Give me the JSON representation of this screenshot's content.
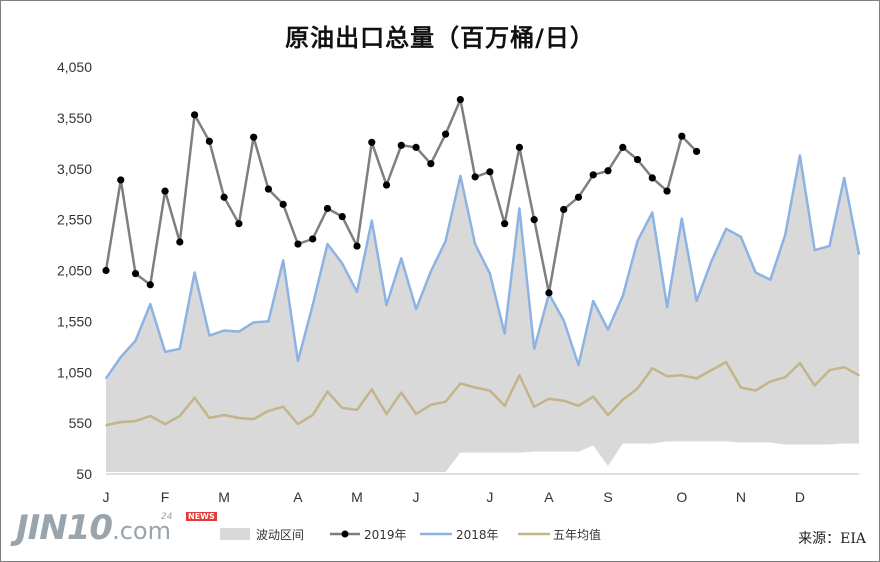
{
  "title": "原油出口总量（百万桶/日）",
  "source": "来源：EIA",
  "logo": {
    "main": "JIN10",
    "dot": ".com",
    "sub_num": "24",
    "sub_text": "NEWS"
  },
  "colors": {
    "band": "#d9d9d9",
    "y2019": "#7f7f7f",
    "y2019_marker": "#000000",
    "y2018": "#8db3e2",
    "avg5": "#c4b48a"
  },
  "chart_data": {
    "type": "line",
    "title": "原油出口总量（百万桶/日）",
    "y_ticks": [
      "50",
      "550",
      "1,050",
      "1,550",
      "2,050",
      "2,550",
      "3,050",
      "3,550",
      "4,050"
    ],
    "ylim": [
      50,
      4050
    ],
    "x_month_labels": [
      "J",
      "F",
      "M",
      "A",
      "M",
      "J",
      "J",
      "A",
      "S",
      "O",
      "N",
      "D"
    ],
    "x_label_weeks": [
      1,
      5,
      9,
      14,
      18,
      22,
      27,
      31,
      35,
      40,
      44,
      48
    ],
    "weeks": 52,
    "grid": false,
    "legend_position": "bottom",
    "legend": [
      "波动区间",
      "2019年",
      "2018年",
      "五年均值"
    ],
    "series": [
      {
        "name": "2019年",
        "values": [
          2050,
          2940,
          2020,
          1910,
          2830,
          2330,
          3580,
          3320,
          2770,
          2510,
          3360,
          2850,
          2700,
          2310,
          2360,
          2660,
          2580,
          2290,
          3310,
          2890,
          3280,
          3260,
          3100,
          3390,
          3730,
          2970,
          3020,
          2510,
          3260,
          2550,
          1830,
          2650,
          2770,
          2990,
          3030,
          3260,
          3140,
          2960,
          2830,
          3370,
          3220
        ]
      },
      {
        "name": "2018年",
        "values": [
          990,
          1200,
          1360,
          1720,
          1250,
          1280,
          2030,
          1410,
          1460,
          1450,
          1540,
          1550,
          2150,
          1160,
          1710,
          2310,
          2120,
          1840,
          2540,
          1710,
          2170,
          1670,
          2040,
          2340,
          2980,
          2310,
          2020,
          1430,
          2660,
          1280,
          1820,
          1560,
          1120,
          1750,
          1470,
          1800,
          2340,
          2620,
          1690,
          2560,
          1750,
          2140,
          2460,
          2380,
          2030,
          1960,
          2400,
          3180,
          2250,
          2290,
          2960,
          2210
        ]
      },
      {
        "name": "五年均值",
        "values": [
          530,
          560,
          570,
          620,
          540,
          620,
          800,
          600,
          630,
          600,
          590,
          670,
          710,
          540,
          630,
          860,
          700,
          680,
          880,
          640,
          850,
          640,
          730,
          760,
          940,
          900,
          870,
          720,
          1020,
          710,
          790,
          770,
          720,
          810,
          630,
          780,
          890,
          1090,
          1010,
          1020,
          990,
          1070,
          1150,
          900,
          870,
          960,
          1000,
          1140,
          920,
          1070,
          1100,
          1020
        ]
      },
      {
        "name": "波动区间",
        "upper": [
          990,
          1200,
          1360,
          1720,
          1250,
          1280,
          2030,
          1410,
          1460,
          1450,
          1540,
          1550,
          2150,
          1160,
          1710,
          2310,
          2120,
          1840,
          2540,
          1710,
          2170,
          1670,
          2040,
          2340,
          2980,
          2310,
          2020,
          1430,
          2660,
          1280,
          1820,
          1560,
          1120,
          1750,
          1470,
          1800,
          2340,
          2620,
          1690,
          2560,
          1750,
          2140,
          2460,
          2380,
          2030,
          1960,
          2400,
          3180,
          2250,
          2290,
          2960,
          2210
        ],
        "lower": [
          70,
          70,
          70,
          70,
          70,
          70,
          70,
          70,
          70,
          70,
          70,
          70,
          70,
          70,
          70,
          70,
          70,
          70,
          70,
          70,
          70,
          70,
          70,
          70,
          260,
          260,
          260,
          260,
          260,
          270,
          270,
          270,
          270,
          330,
          130,
          350,
          350,
          350,
          370,
          370,
          370,
          370,
          370,
          360,
          360,
          360,
          340,
          340,
          340,
          340,
          350,
          350
        ]
      }
    ]
  }
}
